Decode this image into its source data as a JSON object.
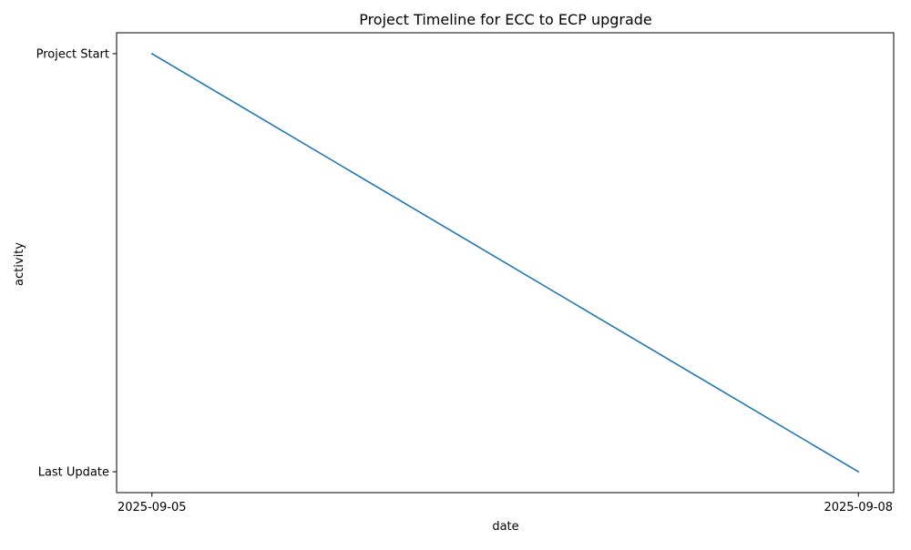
{
  "chart_data": {
    "type": "line",
    "title": "Project Timeline for ECC to ECP upgrade",
    "xlabel": "date",
    "ylabel": "activity",
    "x": [
      "2025-09-05",
      "2025-09-08"
    ],
    "y_categories": [
      "Last Update",
      "Project Start"
    ],
    "series": [
      {
        "x": [
          "2025-09-05",
          "2025-09-08"
        ],
        "y": [
          "Project Start",
          "Last Update"
        ],
        "color": "#1f77b4"
      }
    ],
    "x_ticks": [
      "2025-09-05",
      "2025-09-08"
    ],
    "y_ticks": [
      "Project Start",
      "Last Update"
    ],
    "grid": false,
    "legend": false
  }
}
